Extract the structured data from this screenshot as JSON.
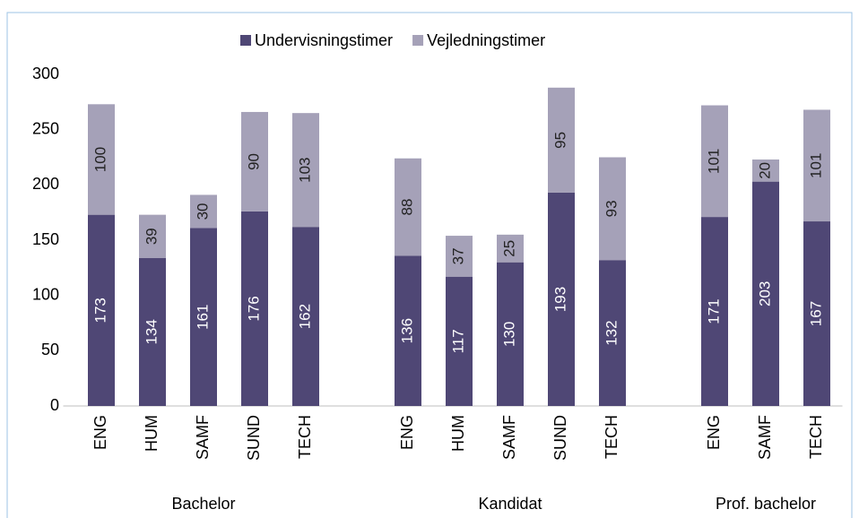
{
  "chart_data": {
    "type": "stacked_bar",
    "categories": [
      "ENG",
      "HUM",
      "SAMF",
      "SUND",
      "TECH",
      null,
      "ENG",
      "HUM",
      "SAMF",
      "SUND",
      "TECH",
      null,
      "ENG",
      "SAMF",
      "TECH"
    ],
    "group_labels": [
      "Bachelor",
      "Kandidat",
      "Prof. bachelor"
    ],
    "series": [
      {
        "name": "Undervisningstimer",
        "color": "#4f4775",
        "values": [
          173,
          134,
          161,
          176,
          162,
          null,
          136,
          117,
          130,
          193,
          132,
          null,
          171,
          203,
          167
        ]
      },
      {
        "name": "Vejledningstimer",
        "color": "#a5a1b8",
        "values": [
          100,
          39,
          30,
          90,
          103,
          null,
          88,
          37,
          25,
          95,
          93,
          null,
          101,
          20,
          101
        ]
      }
    ],
    "ylim": [
      0,
      300
    ],
    "yticks": [
      0,
      50,
      100,
      150,
      200,
      250,
      300
    ],
    "grid": false,
    "legend": "top"
  }
}
